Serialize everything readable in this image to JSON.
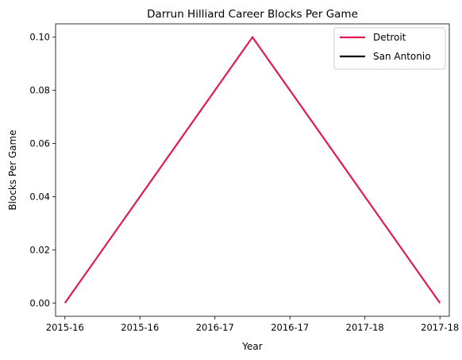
{
  "chart_data": {
    "type": "line",
    "title": "Darrun Hilliard Career Blocks Per Game",
    "xlabel": "Year",
    "ylabel": "Blocks Per Game",
    "x_tick_labels": [
      "2015-16",
      "2015-16",
      "2016-17",
      "2016-17",
      "2017-18",
      "2017-18"
    ],
    "y_ticks": [
      0.0,
      0.02,
      0.04,
      0.06,
      0.08,
      0.1
    ],
    "y_tick_labels": [
      "0.00",
      "0.02",
      "0.04",
      "0.06",
      "0.08",
      "0.10"
    ],
    "ylim": [
      -0.005,
      0.105
    ],
    "xlim": [
      -0.05,
      2.05
    ],
    "grid": false,
    "legend_position": "top-right",
    "series": [
      {
        "name": "Detroit",
        "color": "#e41a4d",
        "x": [
          0,
          1,
          2
        ],
        "y": [
          0.0,
          0.1,
          0.0
        ]
      },
      {
        "name": "San Antonio",
        "color": "#000000",
        "x": [],
        "y": []
      }
    ]
  }
}
